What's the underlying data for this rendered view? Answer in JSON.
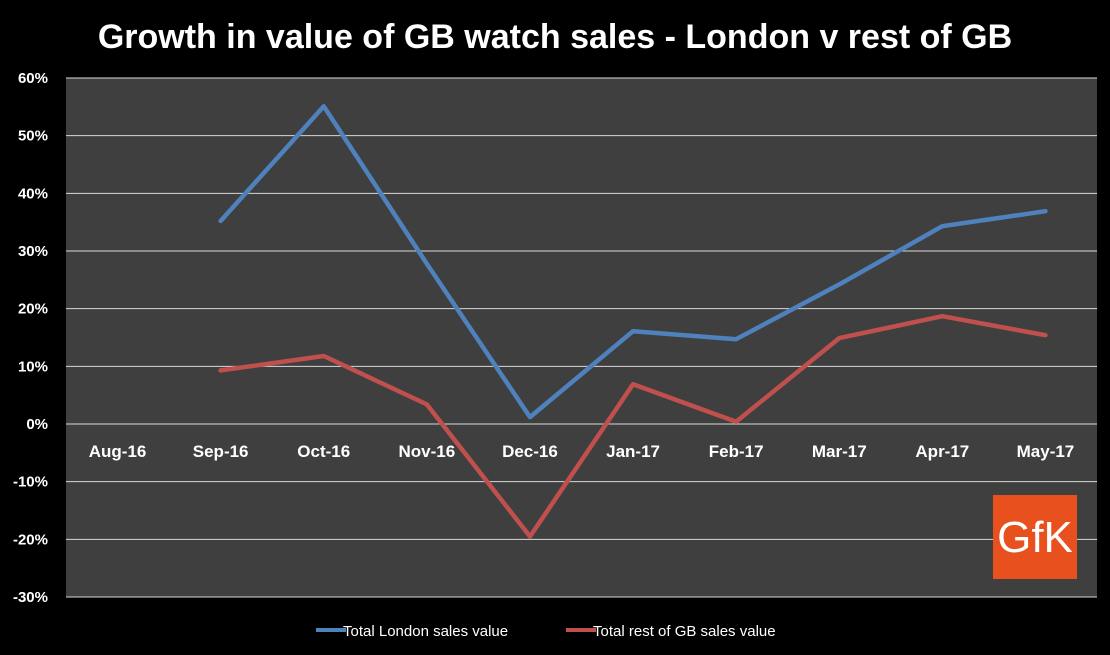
{
  "chart_data": {
    "type": "line",
    "title": "Growth in value of GB watch sales - London v rest of GB",
    "categories": [
      "Aug-16",
      "Sep-16",
      "Oct-16",
      "Nov-16",
      "Dec-16",
      "Jan-17",
      "Feb-17",
      "Mar-17",
      "Apr-17",
      "May-17"
    ],
    "ylim": [
      -0.3,
      0.6
    ],
    "yticks": [
      "-30%",
      "-20%",
      "-10%",
      "0%",
      "10%",
      "20%",
      "30%",
      "40%",
      "50%",
      "60%"
    ],
    "grid": true,
    "legend_position": "bottom",
    "series": [
      {
        "name": "Total London sales value",
        "color": "#4f81bd",
        "values": [
          null,
          0.352,
          0.551,
          0.278,
          0.012,
          0.161,
          0.147,
          0.242,
          0.343,
          0.369
        ]
      },
      {
        "name": "Total rest of GB sales value",
        "color": "#c0504d",
        "values": [
          null,
          0.093,
          0.118,
          0.034,
          -0.195,
          0.069,
          0.004,
          0.149,
          0.187,
          0.154
        ]
      }
    ],
    "plot_background": "#3f3f3f",
    "gridline_color": "#d9d9d9"
  },
  "logo": {
    "text": "GfK",
    "color": "#e8501e"
  }
}
